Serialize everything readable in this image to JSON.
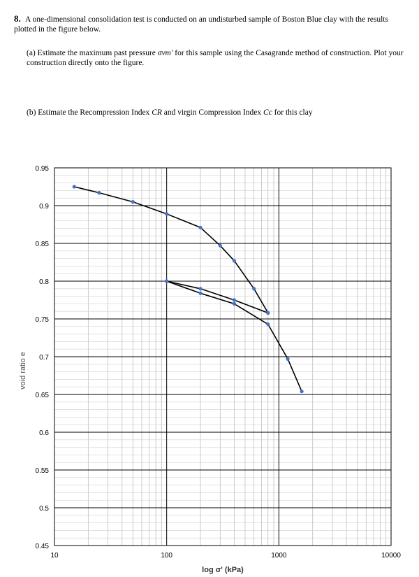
{
  "problem": {
    "number": "8.",
    "intro": "A one-dimensional consolidation test is conducted on an undisturbed sample of Boston Blue clay with the results plotted in the figure below.",
    "part_a": {
      "label": "(a)",
      "text_before": "Estimate the maximum past pressure",
      "symbol": "σvm′",
      "text_after": "for this sample using the Casagrande method of construction. Plot your construction directly onto the figure."
    },
    "part_b": {
      "label": "(b)",
      "text_before": "Estimate the Recompression Index",
      "symbol_1": "CR",
      "text_mid": "and virgin Compression Index",
      "symbol_2": "Cc",
      "text_after": "for this clay"
    }
  },
  "chart_data": {
    "type": "line",
    "title": "",
    "xlabel": "log σ' (kPa)",
    "ylabel": "void ratio e",
    "x_scale": "log",
    "xlim": [
      10,
      10000
    ],
    "ylim": [
      0.45,
      0.95
    ],
    "x_ticks": [
      "10",
      "100",
      "1000",
      "10000"
    ],
    "y_ticks": [
      "0.95",
      "0.9",
      "0.85",
      "0.8",
      "0.75",
      "0.7",
      "0.65",
      "0.6",
      "0.55",
      "0.5",
      "0.45"
    ],
    "grid": true,
    "legend": "none",
    "line_color": "#000000",
    "marker_color": "#4472c4",
    "series": [
      {
        "x": [
          15,
          25,
          50,
          100,
          200,
          300,
          400,
          600,
          800
        ],
        "y": [
          0.925,
          0.917,
          0.905,
          0.889,
          0.871,
          0.847,
          0.827,
          0.79,
          0.758
        ]
      },
      {
        "x": [
          800,
          400,
          200,
          100
        ],
        "y": [
          0.758,
          0.775,
          0.79,
          0.8
        ]
      },
      {
        "x": [
          100,
          200,
          400,
          800,
          1200,
          1600
        ],
        "y": [
          0.8,
          0.784,
          0.77,
          0.743,
          0.697,
          0.654
        ]
      }
    ]
  }
}
